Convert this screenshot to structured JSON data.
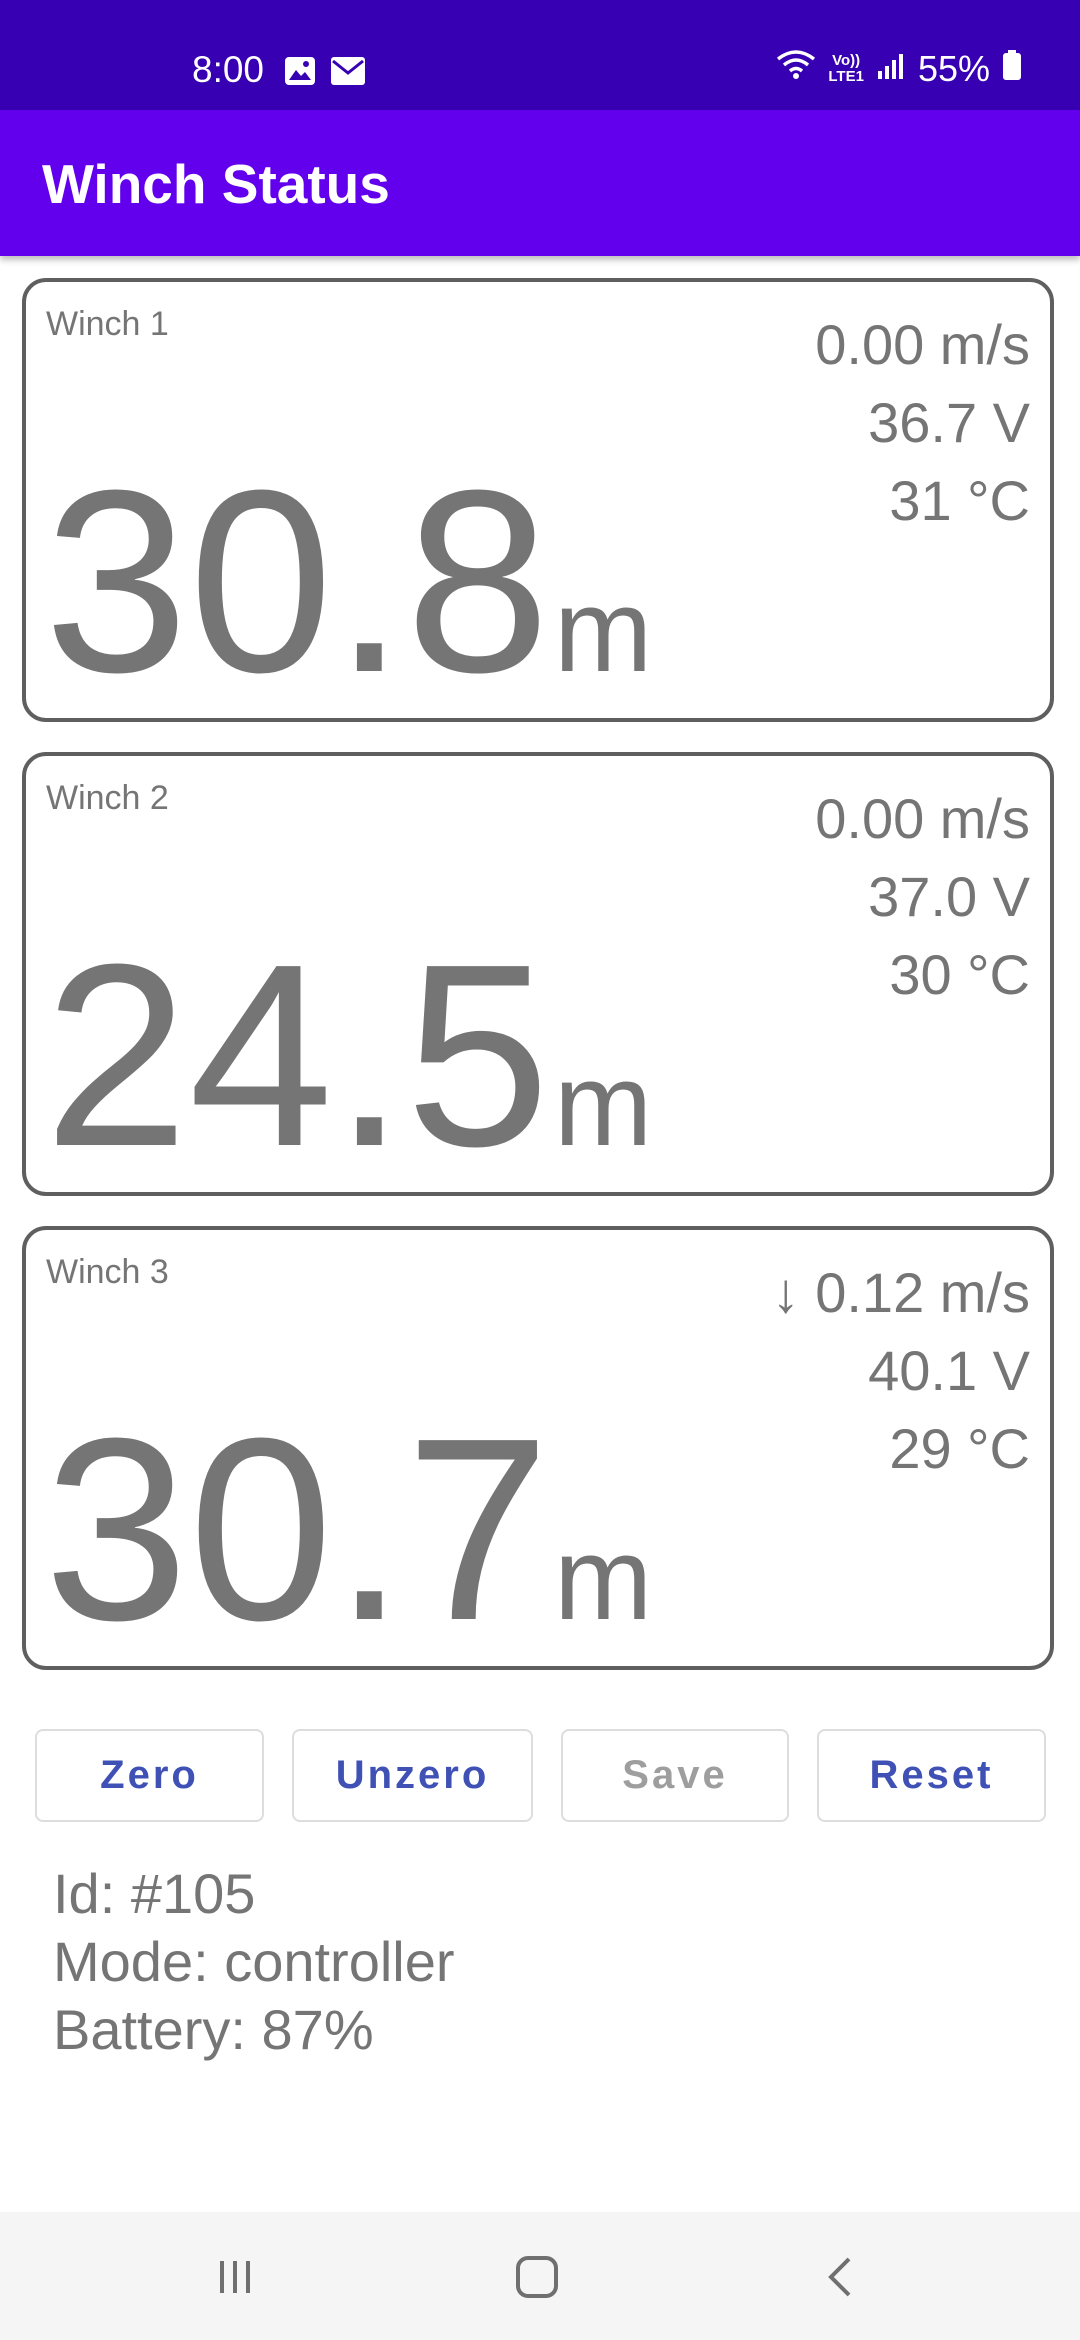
{
  "status_bar": {
    "time": "8:00",
    "network_label_top": "Vo))",
    "network_label_bottom": "LTE1",
    "battery_percent": "55%",
    "icons": [
      "image-icon",
      "mail-icon",
      "wifi-icon",
      "signal-icon",
      "battery-icon"
    ]
  },
  "app_bar": {
    "title": "Winch Status",
    "colors": {
      "status_bar": "#3700b3",
      "app_bar": "#6200ee"
    }
  },
  "winches": [
    {
      "name": "Winch 1",
      "speed": "0.00 m/s",
      "voltage": "36.7 V",
      "temperature": "31 °C",
      "distance": "30.8",
      "unit": "m"
    },
    {
      "name": "Winch 2",
      "speed": "0.00 m/s",
      "voltage": "37.0 V",
      "temperature": "30 °C",
      "distance": "24.5",
      "unit": "m"
    },
    {
      "name": "Winch 3",
      "speed": "↓ 0.12 m/s",
      "voltage": "40.1 V",
      "temperature": "29 °C",
      "distance": "30.7",
      "unit": "m"
    }
  ],
  "buttons": {
    "zero": "Zero",
    "unzero": "Unzero",
    "save": "Save",
    "reset": "Reset",
    "accent_color": "#3f51b5"
  },
  "info": {
    "id": "Id: #105",
    "mode": "Mode: controller",
    "battery": "Battery: 87%"
  },
  "nav_bar": {
    "icons": [
      "recent-apps-icon",
      "home-icon",
      "back-icon"
    ]
  }
}
